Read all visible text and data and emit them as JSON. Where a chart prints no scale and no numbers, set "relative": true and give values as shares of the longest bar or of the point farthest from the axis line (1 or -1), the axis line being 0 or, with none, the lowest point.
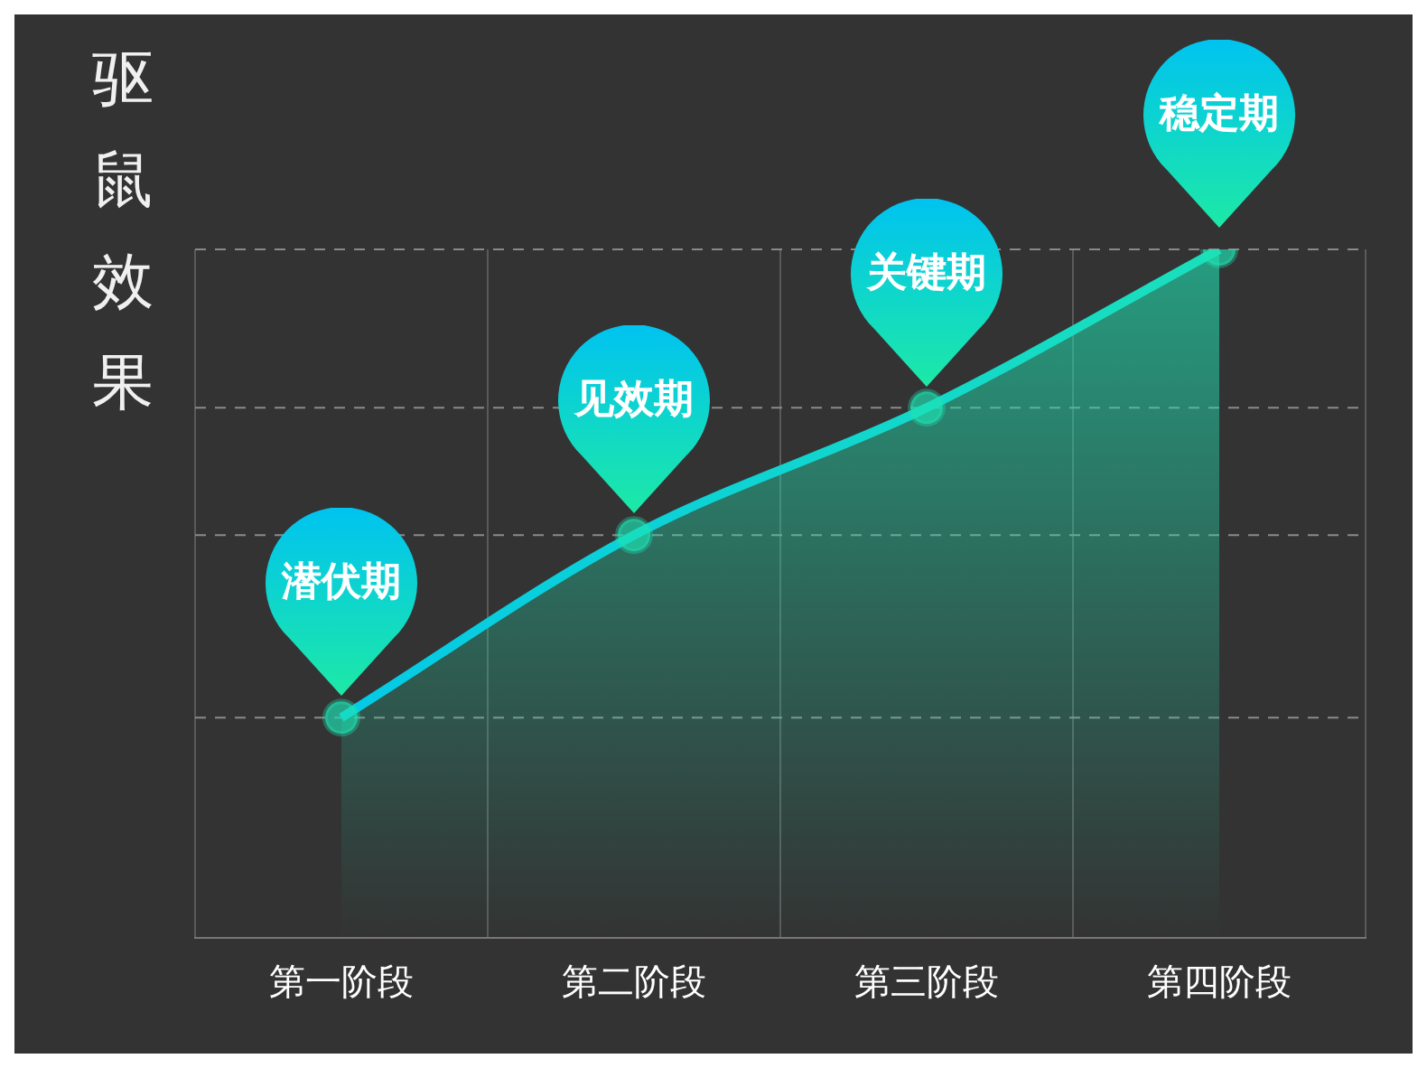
{
  "chart_data": {
    "type": "area",
    "ylabel": "驱鼠效果",
    "categories": [
      "第一阶段",
      "第二阶段",
      "第三阶段",
      "第四阶段"
    ],
    "relative": true,
    "series": [
      {
        "color": "#1ee3b4",
        "values": [
          0.32,
          0.585,
          0.77,
          1
        ]
      }
    ],
    "marker": "circle",
    "grid": "x",
    "legend": false,
    "annotations": [
      {
        "text": "潜伏期",
        "x": "第一阶段",
        "y": 0.32
      },
      {
        "text": "见效期",
        "x": "第二阶段",
        "y": 0.585
      },
      {
        "text": "关键期",
        "x": "第三阶段",
        "y": 0.77
      },
      {
        "text": "稳定期",
        "x": "第四阶段",
        "y": 1
      }
    ],
    "ref_lines": [
      {
        "axis": "y",
        "value": 0.32,
        "line_style": "dashed",
        "color": "#8a8a8a"
      },
      {
        "axis": "y",
        "value": 0.585,
        "line_style": "dashed",
        "color": "#8a8a8a"
      },
      {
        "axis": "y",
        "value": 0.77,
        "line_style": "dashed",
        "color": "#8a8a8a"
      },
      {
        "axis": "y",
        "value": 1,
        "line_style": "dashed",
        "color": "#8a8a8a"
      }
    ]
  }
}
